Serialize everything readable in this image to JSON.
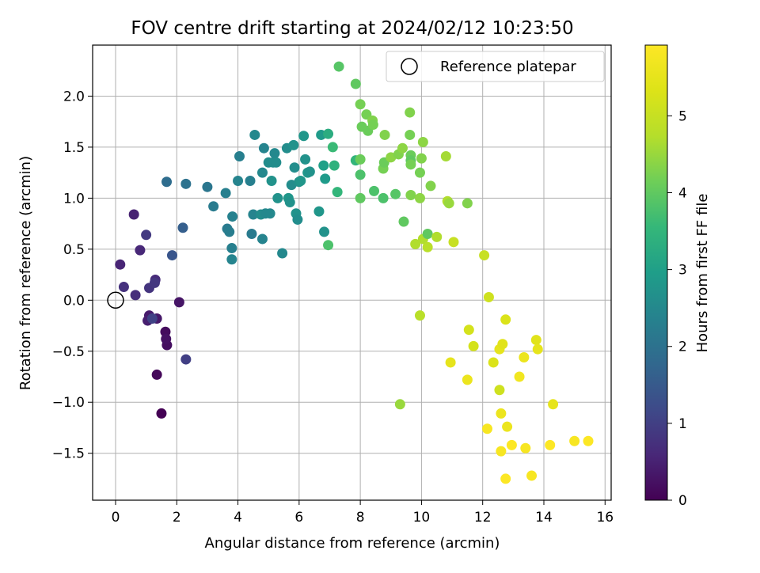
{
  "chart_data": {
    "type": "scatter",
    "title": "FOV centre drift starting at 2024/02/12 10:23:50",
    "xlabel": "Angular distance from reference (arcmin)",
    "ylabel": "Rotation from reference (arcmin)",
    "xlim": [
      -0.75,
      16.2
    ],
    "ylim": [
      -1.96,
      2.5
    ],
    "xticks": [
      0,
      2,
      4,
      6,
      8,
      10,
      12,
      14,
      16
    ],
    "xtick_labels": [
      "0",
      "2",
      "4",
      "6",
      "8",
      "10",
      "12",
      "14",
      "16"
    ],
    "yticks": [
      -1.5,
      -1.0,
      -0.5,
      0.0,
      0.5,
      1.0,
      1.5,
      2.0
    ],
    "ytick_labels": [
      "−1.5",
      "−1.0",
      "−0.5",
      "0.0",
      "0.5",
      "1.0",
      "1.5",
      "2.0"
    ],
    "grid": true,
    "colormap": "viridis",
    "colorbar": {
      "label": "Hours from first FF file",
      "range": [
        0,
        5.92
      ],
      "ticks": [
        0,
        1,
        2,
        3,
        4,
        5
      ],
      "tick_labels": [
        "0",
        "1",
        "2",
        "3",
        "4",
        "5"
      ]
    },
    "legend": {
      "position": "upper right",
      "entries": [
        {
          "label": "Reference platepar",
          "marker": "open-circle"
        }
      ]
    },
    "reference_point": {
      "x": 0,
      "y": 0
    },
    "series": [
      {
        "points": [
          [
            1.5,
            -1.11,
            0.0
          ],
          [
            1.35,
            -0.73,
            0.1
          ],
          [
            1.63,
            -0.31,
            0.15
          ],
          [
            1.68,
            -0.44,
            0.2
          ],
          [
            1.65,
            -0.38,
            0.25
          ],
          [
            2.08,
            -0.02,
            0.3
          ],
          [
            1.35,
            -0.18,
            0.35
          ],
          [
            1.1,
            -0.15,
            0.4
          ],
          [
            1.05,
            -0.2,
            0.45
          ],
          [
            0.6,
            0.84,
            0.5
          ],
          [
            0.15,
            0.35,
            0.55
          ],
          [
            0.8,
            0.49,
            0.6
          ],
          [
            1.3,
            0.2,
            0.65
          ],
          [
            0.65,
            0.05,
            0.7
          ],
          [
            0.27,
            0.13,
            0.75
          ],
          [
            1.1,
            0.12,
            0.8
          ],
          [
            1.28,
            0.17,
            0.85
          ],
          [
            1.0,
            0.64,
            0.9
          ],
          [
            2.3,
            -0.58,
            1.0
          ],
          [
            1.2,
            -0.18,
            1.05
          ],
          [
            1.85,
            0.44,
            1.4
          ],
          [
            2.2,
            0.71,
            1.6
          ],
          [
            1.67,
            1.16,
            1.9
          ],
          [
            2.3,
            1.14,
            2.0
          ],
          [
            3.0,
            1.11,
            2.1
          ],
          [
            3.2,
            0.92,
            2.2
          ],
          [
            3.6,
            1.05,
            2.3
          ],
          [
            3.65,
            0.7,
            2.2
          ],
          [
            3.72,
            0.67,
            2.25
          ],
          [
            3.8,
            0.51,
            2.3
          ],
          [
            3.8,
            0.4,
            2.4
          ],
          [
            3.82,
            0.82,
            2.35
          ],
          [
            4.0,
            1.17,
            2.4
          ],
          [
            4.05,
            1.41,
            2.3
          ],
          [
            4.4,
            1.17,
            2.3
          ],
          [
            4.45,
            0.65,
            2.2
          ],
          [
            4.5,
            0.84,
            2.4
          ],
          [
            4.55,
            1.62,
            2.5
          ],
          [
            4.75,
            0.84,
            2.6
          ],
          [
            4.8,
            0.6,
            2.4
          ],
          [
            4.8,
            1.25,
            2.5
          ],
          [
            4.85,
            1.49,
            2.4
          ],
          [
            4.9,
            0.85,
            2.5
          ],
          [
            5.0,
            1.35,
            2.6
          ],
          [
            5.05,
            0.85,
            2.5
          ],
          [
            5.1,
            1.17,
            2.7
          ],
          [
            5.15,
            1.35,
            2.6
          ],
          [
            5.2,
            1.44,
            2.5
          ],
          [
            5.25,
            1.35,
            2.6
          ],
          [
            5.3,
            1.0,
            2.7
          ],
          [
            5.45,
            0.46,
            2.5
          ],
          [
            5.6,
            1.49,
            2.6
          ],
          [
            5.65,
            1.0,
            2.8
          ],
          [
            5.7,
            0.96,
            2.7
          ],
          [
            5.75,
            1.13,
            2.6
          ],
          [
            5.82,
            1.52,
            2.7
          ],
          [
            5.85,
            1.3,
            2.6
          ],
          [
            5.9,
            0.85,
            2.7
          ],
          [
            5.95,
            0.79,
            2.6
          ],
          [
            6.0,
            1.16,
            2.7
          ],
          [
            6.05,
            1.17,
            2.8
          ],
          [
            6.15,
            1.61,
            2.8
          ],
          [
            6.2,
            1.38,
            2.7
          ],
          [
            6.28,
            1.25,
            2.8
          ],
          [
            6.35,
            1.26,
            2.7
          ],
          [
            6.65,
            0.87,
            2.8
          ],
          [
            6.72,
            1.62,
            2.9
          ],
          [
            6.8,
            1.32,
            3.0
          ],
          [
            6.82,
            0.67,
            2.7
          ],
          [
            6.85,
            1.19,
            2.9
          ],
          [
            6.95,
            1.63,
            3.3
          ],
          [
            7.1,
            1.5,
            3.6
          ],
          [
            7.15,
            1.32,
            3.4
          ],
          [
            6.95,
            0.54,
            3.8
          ],
          [
            7.25,
            1.06,
            3.5
          ],
          [
            7.3,
            2.29,
            3.9
          ],
          [
            7.85,
            2.12,
            4.0
          ],
          [
            7.85,
            1.37,
            3.5
          ],
          [
            8.0,
            1.92,
            4.2
          ],
          [
            8.0,
            1.38,
            4.1
          ],
          [
            8.0,
            1.0,
            4.0
          ],
          [
            8.0,
            1.23,
            3.8
          ],
          [
            8.05,
            1.7,
            4.1
          ],
          [
            8.2,
            1.82,
            4.2
          ],
          [
            8.25,
            1.66,
            4.1
          ],
          [
            8.4,
            1.76,
            4.3
          ],
          [
            8.42,
            1.72,
            4.2
          ],
          [
            8.45,
            1.07,
            3.8
          ],
          [
            8.75,
            1.0,
            3.8
          ],
          [
            8.75,
            1.29,
            4.2
          ],
          [
            8.78,
            1.35,
            4.1
          ],
          [
            8.8,
            1.62,
            4.3
          ],
          [
            9.0,
            1.4,
            4.4
          ],
          [
            9.15,
            1.04,
            3.9
          ],
          [
            9.25,
            1.43,
            4.3
          ],
          [
            9.38,
            1.49,
            4.4
          ],
          [
            9.42,
            0.77,
            4.0
          ],
          [
            9.62,
            1.62,
            4.2
          ],
          [
            9.62,
            1.84,
            4.3
          ],
          [
            9.65,
            1.42,
            4.1
          ],
          [
            9.65,
            1.37,
            4.0
          ],
          [
            9.65,
            1.33,
            4.2
          ],
          [
            9.65,
            1.03,
            4.3
          ],
          [
            9.8,
            0.55,
            4.7
          ],
          [
            9.95,
            1.0,
            4.4
          ],
          [
            9.95,
            1.25,
            4.2
          ],
          [
            10.0,
            1.39,
            4.3
          ],
          [
            10.05,
            1.55,
            4.4
          ],
          [
            10.05,
            0.6,
            4.7
          ],
          [
            10.2,
            0.65,
            4.0
          ],
          [
            10.2,
            0.52,
            4.8
          ],
          [
            10.3,
            1.12,
            4.3
          ],
          [
            10.5,
            0.62,
            4.7
          ],
          [
            10.8,
            1.41,
            4.6
          ],
          [
            10.85,
            0.97,
            4.7
          ],
          [
            10.9,
            0.95,
            4.5
          ],
          [
            11.05,
            0.57,
            5.0
          ],
          [
            11.5,
            0.95,
            4.3
          ],
          [
            12.05,
            0.44,
            5.0
          ],
          [
            12.2,
            0.03,
            5.1
          ],
          [
            9.95,
            -0.15,
            4.8
          ],
          [
            9.3,
            -1.02,
            4.5
          ],
          [
            11.55,
            -0.29,
            5.2
          ],
          [
            11.7,
            -0.45,
            5.2
          ],
          [
            10.95,
            -0.61,
            5.5
          ],
          [
            12.35,
            -0.61,
            5.3
          ],
          [
            12.55,
            -0.48,
            5.5
          ],
          [
            12.65,
            -0.43,
            5.4
          ],
          [
            12.75,
            -0.19,
            5.3
          ],
          [
            11.5,
            -0.78,
            5.6
          ],
          [
            12.55,
            -0.88,
            5.1
          ],
          [
            12.6,
            -1.11,
            5.6
          ],
          [
            12.15,
            -1.26,
            5.8
          ],
          [
            12.8,
            -1.24,
            5.6
          ],
          [
            13.2,
            -0.75,
            5.7
          ],
          [
            13.35,
            -0.56,
            5.6
          ],
          [
            13.75,
            -0.39,
            5.4
          ],
          [
            13.8,
            -0.48,
            5.5
          ],
          [
            14.3,
            -1.02,
            5.5
          ],
          [
            12.6,
            -1.48,
            5.8
          ],
          [
            12.95,
            -1.42,
            5.9
          ],
          [
            13.4,
            -1.45,
            5.8
          ],
          [
            12.75,
            -1.75,
            5.9
          ],
          [
            13.6,
            -1.72,
            5.8
          ],
          [
            14.2,
            -1.42,
            5.9
          ],
          [
            15.0,
            -1.38,
            5.8
          ],
          [
            15.45,
            -1.38,
            5.9
          ]
        ]
      }
    ]
  }
}
